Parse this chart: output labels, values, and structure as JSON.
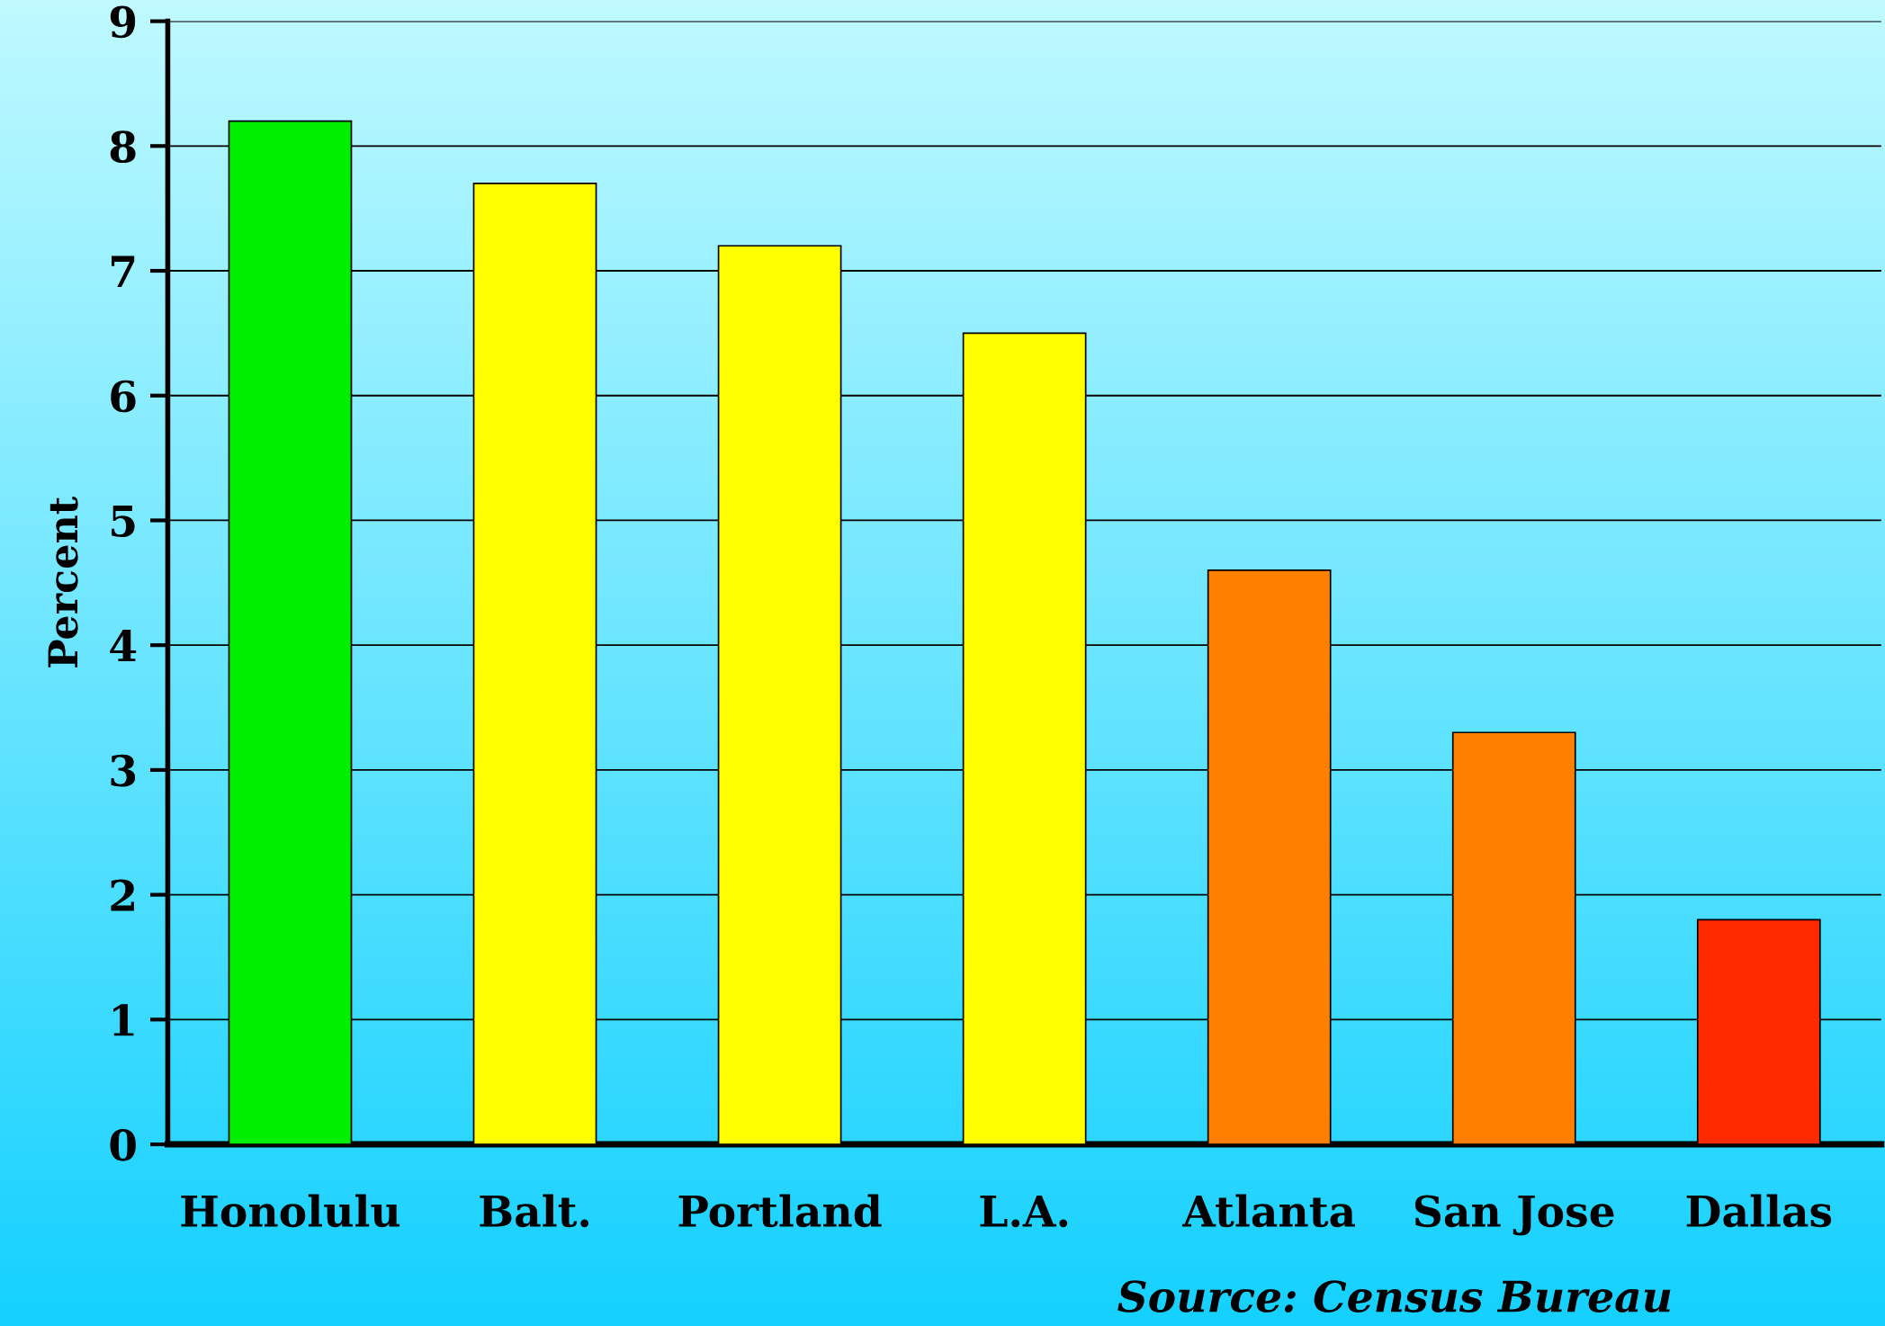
{
  "chart_data": {
    "type": "bar",
    "ylabel": "Percent",
    "categories": [
      "Honolulu",
      "Balt.",
      "Portland",
      "L.A.",
      "Atlanta",
      "San Jose",
      "Dallas"
    ],
    "values": [
      8.2,
      7.7,
      7.2,
      6.5,
      4.6,
      3.3,
      1.8
    ],
    "colors": [
      "#00f000",
      "#ffff00",
      "#ffff00",
      "#ffff00",
      "#ff7f00",
      "#ff7f00",
      "#ff2a00"
    ],
    "ylim": [
      0,
      9
    ],
    "yticks": [
      0,
      1,
      2,
      3,
      4,
      5,
      6,
      7,
      8,
      9
    ],
    "grid": "y",
    "annotations": [
      "Source: Census Bureau"
    ]
  }
}
